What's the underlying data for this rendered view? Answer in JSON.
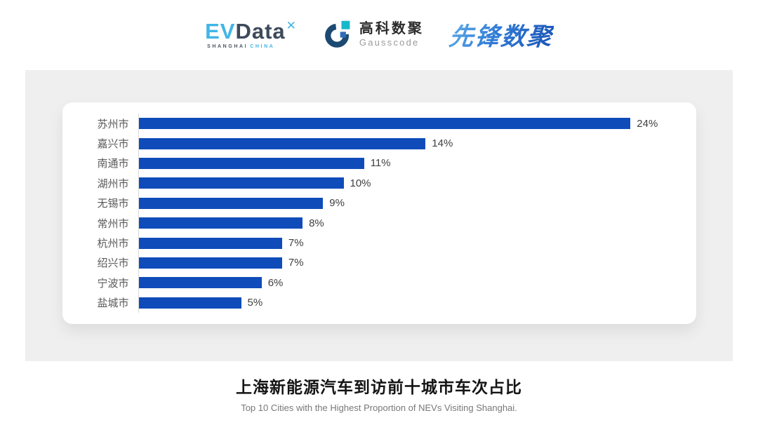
{
  "header": {
    "evdata_logo": {
      "ev": "EV",
      "data": "Data",
      "mark": "✕",
      "subtitle_dark": "SHANGHAI",
      "subtitle_light": "CHINA"
    },
    "gausscode_logo": {
      "name_cn": "高科数聚",
      "name_en": "Gausscode"
    },
    "pioneer_logo": {
      "text": "先锋数聚"
    }
  },
  "chart_data": {
    "type": "bar",
    "orientation": "horizontal",
    "categories": [
      "苏州市",
      "嘉兴市",
      "南通市",
      "湖州市",
      "无锡市",
      "常州市",
      "杭州市",
      "绍兴市",
      "宁波市",
      "盐城市"
    ],
    "values": [
      24,
      14,
      11,
      10,
      9,
      8,
      7,
      7,
      6,
      5
    ],
    "value_labels": [
      "24%",
      "14%",
      "11%",
      "10%",
      "9%",
      "8%",
      "7%",
      "7%",
      "6%",
      "5%"
    ],
    "title": "上海新能源汽车到访前十城市车次占比",
    "subtitle": "Top 10 Cities with the Highest Proportion of  NEVs Visiting Shanghai.",
    "xlim": [
      0,
      24
    ],
    "bar_color": "#0f4cba",
    "axis_line_color": "#d9d9d9",
    "grid": false,
    "legend": false
  },
  "caption": {
    "title": "上海新能源汽车到访前十城市车次占比",
    "subtitle": "Top 10 Cities with the Highest Proportion of  NEVs Visiting Shanghai."
  }
}
